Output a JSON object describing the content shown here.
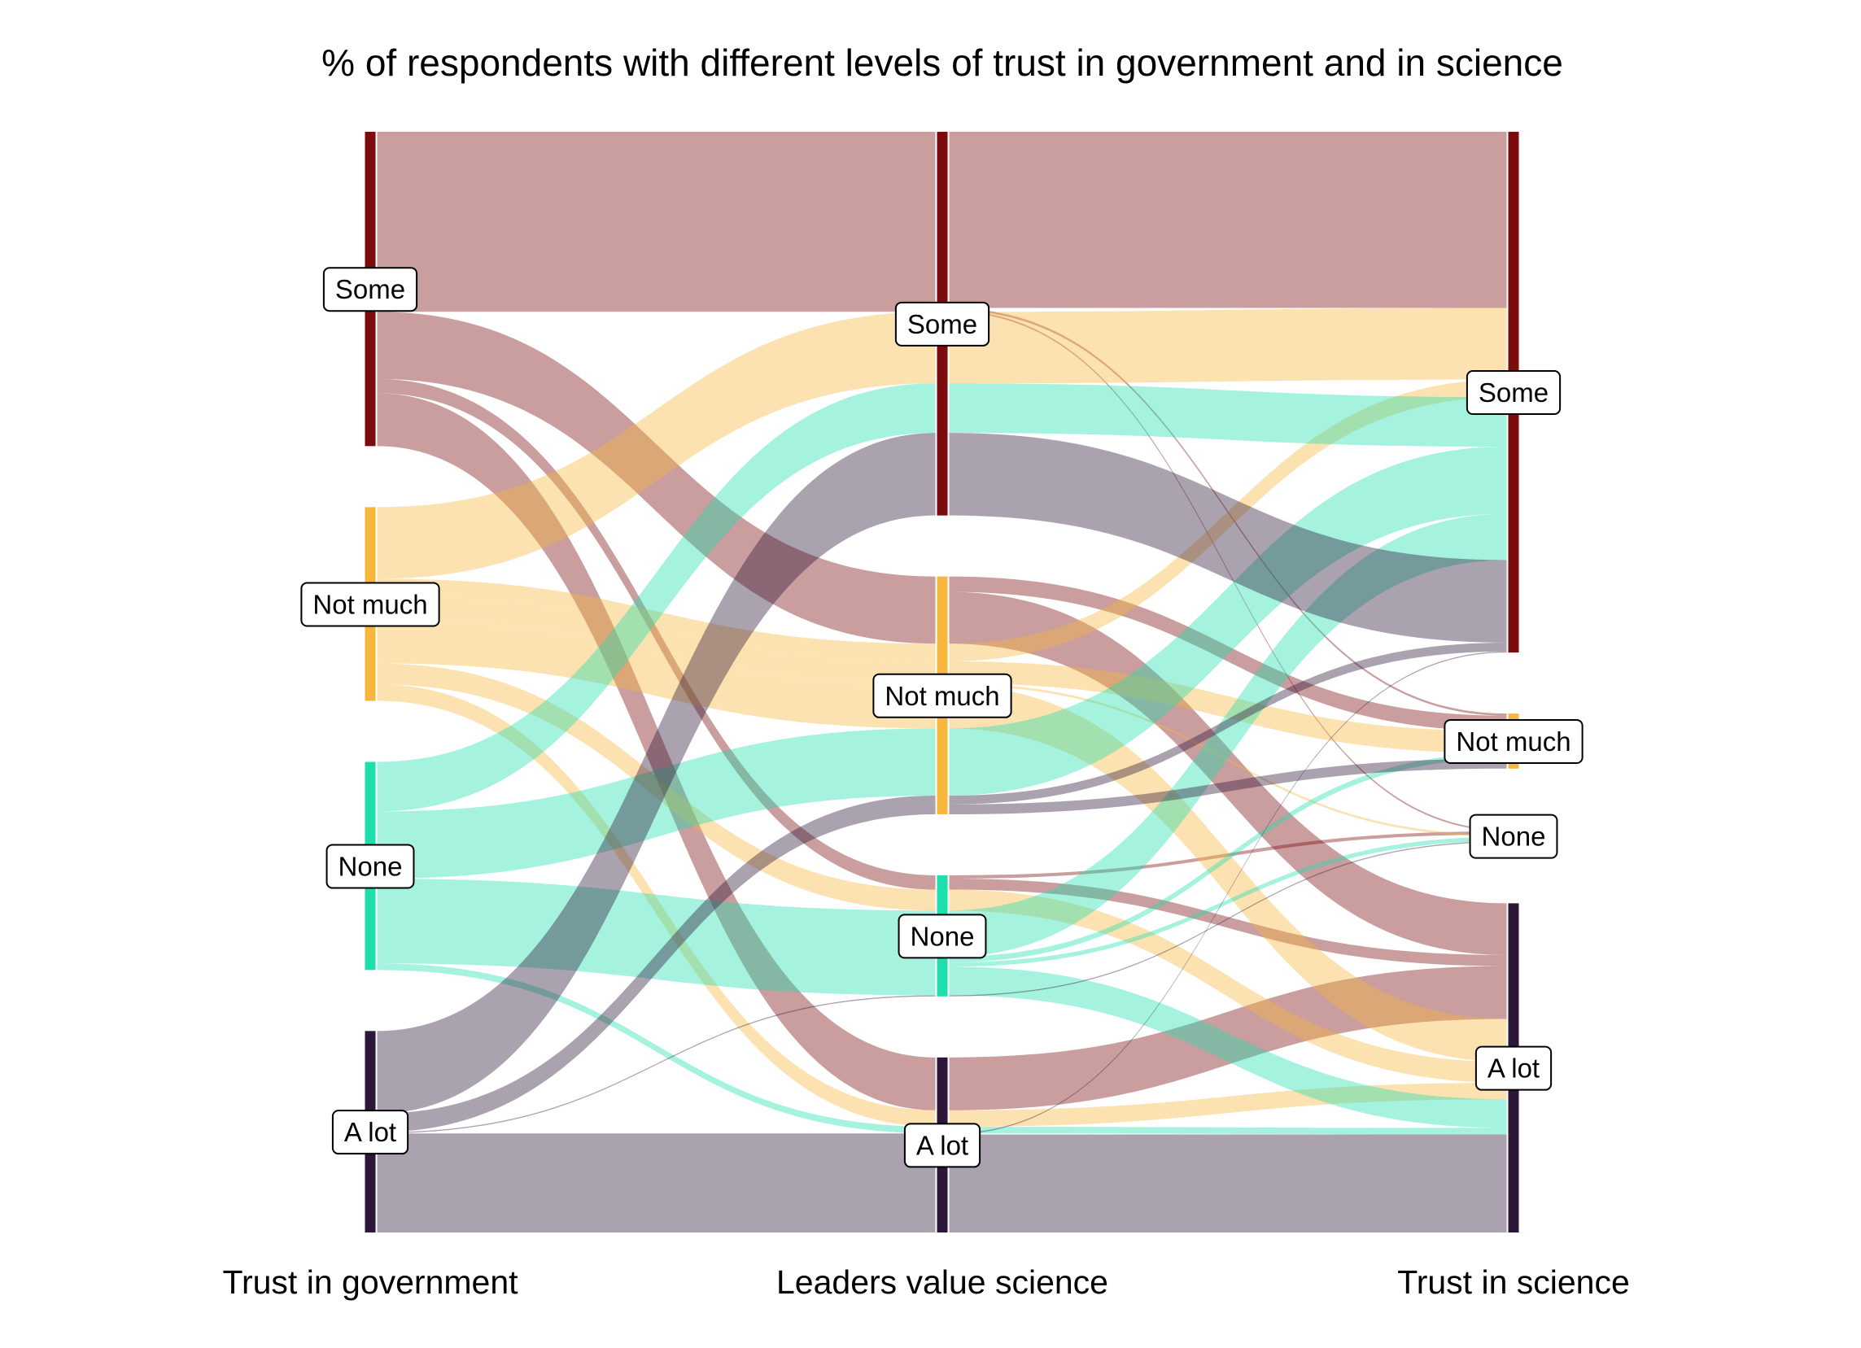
{
  "chart_data": {
    "type": "alluvial",
    "title": "% of respondents with different levels of trust in government and in science",
    "axes": [
      "Trust in government",
      "Leaders value science",
      "Trust in science"
    ],
    "categories": [
      "Some",
      "Not much",
      "None",
      "A lot"
    ],
    "colors": {
      "Some": "#7b0b0d",
      "Not much": "#f7b73c",
      "None": "#1ddfae",
      "A lot": "#2d1738"
    },
    "flows": [
      {
        "gov": "Some",
        "leaders": "Some",
        "science": "Some",
        "value": 16.0
      },
      {
        "gov": "Some",
        "leaders": "Some",
        "science": "Not much",
        "value": 0.2
      },
      {
        "gov": "Some",
        "leaders": "Some",
        "science": "None",
        "value": 0.15
      },
      {
        "gov": "Some",
        "leaders": "Not much",
        "science": "Not much",
        "value": 1.4
      },
      {
        "gov": "Some",
        "leaders": "Not much",
        "science": "A lot",
        "value": 4.7
      },
      {
        "gov": "Some",
        "leaders": "None",
        "science": "None",
        "value": 0.3
      },
      {
        "gov": "Some",
        "leaders": "None",
        "science": "A lot",
        "value": 1.0
      },
      {
        "gov": "Some",
        "leaders": "A lot",
        "science": "A lot",
        "value": 4.8
      },
      {
        "gov": "Not much",
        "leaders": "Some",
        "science": "Some",
        "value": 6.5
      },
      {
        "gov": "Not much",
        "leaders": "Not much",
        "science": "Some",
        "value": 1.6
      },
      {
        "gov": "Not much",
        "leaders": "Not much",
        "science": "Not much",
        "value": 2.0
      },
      {
        "gov": "Not much",
        "leaders": "Not much",
        "science": "None",
        "value": 0.2
      },
      {
        "gov": "Not much",
        "leaders": "Not much",
        "science": "A lot",
        "value": 3.9
      },
      {
        "gov": "Not much",
        "leaders": "None",
        "science": "A lot",
        "value": 1.9
      },
      {
        "gov": "Not much",
        "leaders": "A lot",
        "science": "A lot",
        "value": 1.5
      },
      {
        "gov": "None",
        "leaders": "Some",
        "science": "Some",
        "value": 4.5
      },
      {
        "gov": "None",
        "leaders": "Not much",
        "science": "Some",
        "value": 6.1
      },
      {
        "gov": "None",
        "leaders": "None",
        "science": "Some",
        "value": 4.2
      },
      {
        "gov": "None",
        "leaders": "None",
        "science": "Not much",
        "value": 0.5
      },
      {
        "gov": "None",
        "leaders": "None",
        "science": "None",
        "value": 0.4
      },
      {
        "gov": "None",
        "leaders": "None",
        "science": "A lot",
        "value": 2.6
      },
      {
        "gov": "None",
        "leaders": "A lot",
        "science": "A lot",
        "value": 0.6
      },
      {
        "gov": "A lot",
        "leaders": "Some",
        "science": "Some",
        "value": 7.5
      },
      {
        "gov": "A lot",
        "leaders": "Not much",
        "science": "Some",
        "value": 0.8
      },
      {
        "gov": "A lot",
        "leaders": "Not much",
        "science": "Not much",
        "value": 0.9
      },
      {
        "gov": "A lot",
        "leaders": "None",
        "science": "None",
        "value": 0.1
      },
      {
        "gov": "A lot",
        "leaders": "A lot",
        "science": "Some",
        "value": 0.1
      },
      {
        "gov": "A lot",
        "leaders": "A lot",
        "science": "A lot",
        "value": 8.9
      }
    ]
  }
}
